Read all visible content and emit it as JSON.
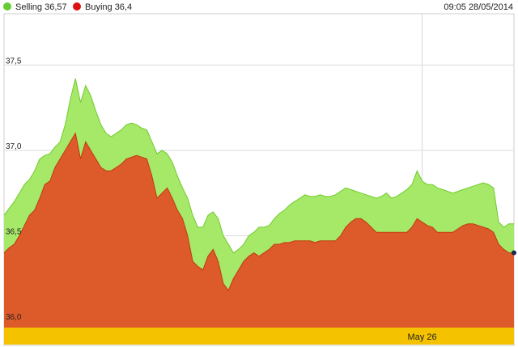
{
  "header": {
    "legend": [
      {
        "label": "Selling 36,57",
        "color": "#66cc33"
      },
      {
        "label": "Buying 36,4",
        "color": "#dd1111"
      }
    ],
    "timestamp": "09:05 28/05/2014"
  },
  "chart_data": {
    "type": "area",
    "ylim": [
      36.0,
      37.8
    ],
    "yticks": [
      36.0,
      36.5,
      37.0,
      37.5
    ],
    "ytick_labels": [
      "36,0",
      "36,5",
      "37,0",
      "37,5"
    ],
    "xlim": [
      0,
      100
    ],
    "x_marker": {
      "label": "May 26",
      "x": 82
    },
    "grid": "horizontal",
    "legend_position": "top-left",
    "colors": {
      "selling_fill": "#a6e868",
      "selling_line": "#6fcb2c",
      "buying_fill": "#dd5a2a",
      "buying_line": "#c03a10",
      "timeband": "#f5c200"
    },
    "series": [
      {
        "name": "Selling",
        "x": [
          0,
          1,
          2,
          3,
          4,
          5,
          6,
          7,
          8,
          9,
          10,
          11,
          12,
          13,
          14,
          15,
          16,
          17,
          18,
          19,
          20,
          21,
          22,
          23,
          24,
          25,
          26,
          27,
          28,
          29,
          30,
          31,
          32,
          33,
          34,
          35,
          36,
          37,
          38,
          39,
          40,
          41,
          42,
          43,
          44,
          45,
          46,
          47,
          48,
          49,
          50,
          51,
          52,
          53,
          54,
          55,
          56,
          57,
          58,
          59,
          60,
          61,
          62,
          63,
          64,
          65,
          66,
          67,
          68,
          69,
          70,
          71,
          72,
          73,
          74,
          75,
          76,
          77,
          78,
          79,
          80,
          81,
          82,
          83,
          84,
          85,
          86,
          87,
          88,
          89,
          90,
          91,
          92,
          93,
          94,
          95,
          96,
          97,
          98,
          99,
          100
        ],
        "values": [
          36.62,
          36.66,
          36.7,
          36.75,
          36.8,
          36.83,
          36.88,
          36.95,
          36.97,
          36.98,
          37.02,
          37.05,
          37.15,
          37.3,
          37.42,
          37.28,
          37.38,
          37.32,
          37.23,
          37.15,
          37.1,
          37.08,
          37.1,
          37.12,
          37.15,
          37.16,
          37.15,
          37.13,
          37.12,
          37.05,
          36.98,
          37.0,
          36.98,
          36.93,
          36.85,
          36.78,
          36.72,
          36.62,
          36.55,
          36.55,
          36.62,
          36.64,
          36.6,
          36.5,
          36.45,
          36.4,
          36.42,
          36.45,
          36.5,
          36.52,
          36.55,
          36.55,
          36.56,
          36.6,
          36.63,
          36.65,
          36.68,
          36.7,
          36.72,
          36.74,
          36.73,
          36.73,
          36.74,
          36.73,
          36.73,
          36.74,
          36.76,
          36.78,
          36.77,
          36.76,
          36.75,
          36.74,
          36.73,
          36.72,
          36.73,
          36.75,
          36.72,
          36.73,
          36.75,
          36.77,
          36.8,
          36.88,
          36.82,
          36.8,
          36.8,
          36.78,
          36.77,
          36.76,
          36.75,
          36.76,
          36.77,
          36.78,
          36.79,
          36.8,
          36.81,
          36.8,
          36.78,
          36.58,
          36.55,
          36.57,
          36.57
        ]
      },
      {
        "name": "Buying",
        "x": [
          0,
          1,
          2,
          3,
          4,
          5,
          6,
          7,
          8,
          9,
          10,
          11,
          12,
          13,
          14,
          15,
          16,
          17,
          18,
          19,
          20,
          21,
          22,
          23,
          24,
          25,
          26,
          27,
          28,
          29,
          30,
          31,
          32,
          33,
          34,
          35,
          36,
          37,
          38,
          39,
          40,
          41,
          42,
          43,
          44,
          45,
          46,
          47,
          48,
          49,
          50,
          51,
          52,
          53,
          54,
          55,
          56,
          57,
          58,
          59,
          60,
          61,
          62,
          63,
          64,
          65,
          66,
          67,
          68,
          69,
          70,
          71,
          72,
          73,
          74,
          75,
          76,
          77,
          78,
          79,
          80,
          81,
          82,
          83,
          84,
          85,
          86,
          87,
          88,
          89,
          90,
          91,
          92,
          93,
          94,
          95,
          96,
          97,
          98,
          99,
          100
        ],
        "values": [
          36.4,
          36.43,
          36.45,
          36.5,
          36.56,
          36.62,
          36.65,
          36.72,
          36.8,
          36.82,
          36.9,
          36.95,
          37.0,
          37.05,
          37.1,
          36.95,
          37.05,
          37.0,
          36.95,
          36.9,
          36.88,
          36.88,
          36.9,
          36.92,
          36.95,
          36.96,
          36.97,
          36.96,
          36.95,
          36.85,
          36.72,
          36.75,
          36.78,
          36.72,
          36.65,
          36.6,
          36.5,
          36.35,
          36.32,
          36.3,
          36.38,
          36.42,
          36.35,
          36.22,
          36.18,
          36.25,
          36.3,
          36.35,
          36.38,
          36.4,
          36.38,
          36.4,
          36.42,
          36.45,
          36.45,
          36.46,
          36.46,
          36.47,
          36.47,
          36.47,
          36.47,
          36.46,
          36.47,
          36.47,
          36.47,
          36.47,
          36.5,
          36.55,
          36.58,
          36.6,
          36.6,
          36.58,
          36.55,
          36.52,
          36.52,
          36.52,
          36.52,
          36.52,
          36.52,
          36.52,
          36.55,
          36.6,
          36.58,
          36.56,
          36.55,
          36.52,
          36.52,
          36.52,
          36.52,
          36.54,
          36.56,
          36.57,
          36.57,
          36.56,
          36.55,
          36.54,
          36.52,
          36.45,
          36.42,
          36.4,
          36.4
        ]
      }
    ]
  }
}
